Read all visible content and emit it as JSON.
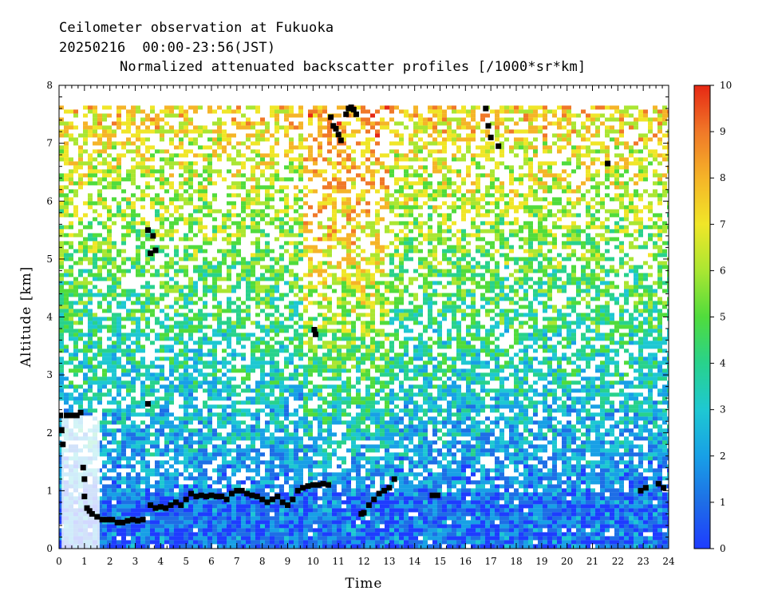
{
  "header": {
    "line1": "Ceilometer observation at Fukuoka",
    "line2": "20250216  00:00-23:56(JST)",
    "line3": "Normalized attenuated backscatter profiles [/1000*sr*km]"
  },
  "chart_data": {
    "type": "heatmap",
    "title": "Normalized attenuated backscatter profiles [/1000*sr*km]",
    "xlabel": "Time",
    "ylabel": "Altitude [km]",
    "xlim": [
      0,
      24
    ],
    "ylim": [
      0,
      8
    ],
    "x_ticks": [
      "0",
      "1",
      "2",
      "3",
      "4",
      "5",
      "6",
      "7",
      "8",
      "9",
      "10",
      "11",
      "12",
      "13",
      "14",
      "15",
      "16",
      "17",
      "18",
      "19",
      "20",
      "21",
      "22",
      "23",
      "24"
    ],
    "y_ticks": [
      "0",
      "1",
      "2",
      "3",
      "4",
      "5",
      "6",
      "7",
      "8"
    ],
    "colorbar": {
      "range": [
        0,
        10
      ],
      "ticks": [
        "0",
        "1",
        "2",
        "3",
        "4",
        "5",
        "6",
        "7",
        "8",
        "9",
        "10"
      ],
      "colors": [
        "#1e3cff",
        "#1e6ee6",
        "#18a0e6",
        "#1ec8d2",
        "#28d28c",
        "#50dc3c",
        "#aae632",
        "#f0e628",
        "#f5b428",
        "#f07828",
        "#e62814"
      ]
    },
    "data_top_km": 7.65,
    "cloud_base_points": [
      [
        0.05,
        2.3
      ],
      [
        0.1,
        2.05
      ],
      [
        0.15,
        1.8
      ],
      [
        0.3,
        2.3
      ],
      [
        0.5,
        2.3
      ],
      [
        0.7,
        2.3
      ],
      [
        0.85,
        2.35
      ],
      [
        0.95,
        1.4
      ],
      [
        1.0,
        1.2
      ],
      [
        1.0,
        0.9
      ],
      [
        1.1,
        0.7
      ],
      [
        1.2,
        0.65
      ],
      [
        1.3,
        0.6
      ],
      [
        1.5,
        0.55
      ],
      [
        1.7,
        0.5
      ],
      [
        1.9,
        0.5
      ],
      [
        2.1,
        0.5
      ],
      [
        2.3,
        0.45
      ],
      [
        2.5,
        0.45
      ],
      [
        2.7,
        0.48
      ],
      [
        2.9,
        0.5
      ],
      [
        3.1,
        0.48
      ],
      [
        3.3,
        0.5
      ],
      [
        3.5,
        2.5
      ],
      [
        3.5,
        5.5
      ],
      [
        3.6,
        5.1
      ],
      [
        3.7,
        5.4
      ],
      [
        3.8,
        5.15
      ],
      [
        3.6,
        0.75
      ],
      [
        3.8,
        0.7
      ],
      [
        4.0,
        0.72
      ],
      [
        4.2,
        0.7
      ],
      [
        4.4,
        0.75
      ],
      [
        4.6,
        0.8
      ],
      [
        4.8,
        0.75
      ],
      [
        5.0,
        0.85
      ],
      [
        5.2,
        0.95
      ],
      [
        5.4,
        0.9
      ],
      [
        5.6,
        0.92
      ],
      [
        5.8,
        0.9
      ],
      [
        6.0,
        0.92
      ],
      [
        6.2,
        0.9
      ],
      [
        6.4,
        0.9
      ],
      [
        6.6,
        0.85
      ],
      [
        6.8,
        0.95
      ],
      [
        7.0,
        1.0
      ],
      [
        7.2,
        1.0
      ],
      [
        7.4,
        0.95
      ],
      [
        7.6,
        0.92
      ],
      [
        7.8,
        0.9
      ],
      [
        8.0,
        0.85
      ],
      [
        8.2,
        0.8
      ],
      [
        8.4,
        0.85
      ],
      [
        8.6,
        0.9
      ],
      [
        8.8,
        0.8
      ],
      [
        9.0,
        0.75
      ],
      [
        9.2,
        0.85
      ],
      [
        9.4,
        1.0
      ],
      [
        9.6,
        1.05
      ],
      [
        9.8,
        1.08
      ],
      [
        10.0,
        1.1
      ],
      [
        10.2,
        1.1
      ],
      [
        10.4,
        1.12
      ],
      [
        10.6,
        1.1
      ],
      [
        10.1,
        3.7
      ],
      [
        10.05,
        3.78
      ],
      [
        10.7,
        7.45
      ],
      [
        10.8,
        7.3
      ],
      [
        10.9,
        7.25
      ],
      [
        11.0,
        7.15
      ],
      [
        11.1,
        7.05
      ],
      [
        11.3,
        7.5
      ],
      [
        11.4,
        7.6
      ],
      [
        11.5,
        7.62
      ],
      [
        11.6,
        7.58
      ],
      [
        11.7,
        7.5
      ],
      [
        11.9,
        0.6
      ],
      [
        12.0,
        0.62
      ],
      [
        12.2,
        0.75
      ],
      [
        12.4,
        0.85
      ],
      [
        12.6,
        0.95
      ],
      [
        12.8,
        1.0
      ],
      [
        13.0,
        1.05
      ],
      [
        13.2,
        1.2
      ],
      [
        14.7,
        0.92
      ],
      [
        14.9,
        0.92
      ],
      [
        16.8,
        7.6
      ],
      [
        16.9,
        7.3
      ],
      [
        17.0,
        7.1
      ],
      [
        17.3,
        6.95
      ],
      [
        21.6,
        6.65
      ],
      [
        22.9,
        1.0
      ],
      [
        23.1,
        1.05
      ],
      [
        23.6,
        1.12
      ],
      [
        23.8,
        1.05
      ]
    ]
  }
}
